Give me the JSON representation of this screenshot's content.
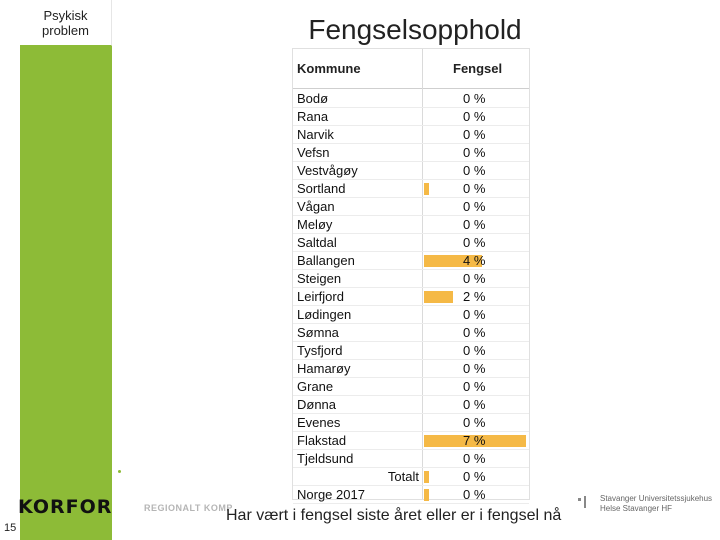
{
  "sidebar": {
    "label": "Psykisk problem"
  },
  "title": "Fengselsopphold",
  "table": {
    "headers": {
      "kommune": "Kommune",
      "fengsel": "Fengsel"
    },
    "bar_color": "#f5b946",
    "rows": [
      {
        "name": "Bodø",
        "pct": "0 %",
        "value": 0
      },
      {
        "name": "Rana",
        "pct": "0 %",
        "value": 0
      },
      {
        "name": "Narvik",
        "pct": "0 %",
        "value": 0
      },
      {
        "name": "Vefsn",
        "pct": "0 %",
        "value": 0
      },
      {
        "name": "Vestvågøy",
        "pct": "0 %",
        "value": 0
      },
      {
        "name": "Sortland",
        "pct": "0 %",
        "value": 0.3
      },
      {
        "name": "Vågan",
        "pct": "0 %",
        "value": 0
      },
      {
        "name": "Meløy",
        "pct": "0 %",
        "value": 0
      },
      {
        "name": "Saltdal",
        "pct": "0 %",
        "value": 0
      },
      {
        "name": "Ballangen",
        "pct": "4 %",
        "value": 4
      },
      {
        "name": "Steigen",
        "pct": "0 %",
        "value": 0
      },
      {
        "name": "Leirfjord",
        "pct": "2 %",
        "value": 2
      },
      {
        "name": "Lødingen",
        "pct": "0 %",
        "value": 0
      },
      {
        "name": "Sømna",
        "pct": "0 %",
        "value": 0
      },
      {
        "name": "Tysfjord",
        "pct": "0 %",
        "value": 0
      },
      {
        "name": "Hamarøy",
        "pct": "0 %",
        "value": 0
      },
      {
        "name": "Grane",
        "pct": "0 %",
        "value": 0
      },
      {
        "name": "Dønna",
        "pct": "0 %",
        "value": 0
      },
      {
        "name": "Evenes",
        "pct": "0 %",
        "value": 0
      },
      {
        "name": "Flakstad",
        "pct": "7 %",
        "value": 7
      },
      {
        "name": "Tjeldsund",
        "pct": "0 %",
        "value": 0
      },
      {
        "name": "Totalt",
        "pct": "0 %",
        "value": 0.3,
        "total": true
      },
      {
        "name": "Norge 2017",
        "pct": "0 %",
        "value": 0.3
      }
    ],
    "max_value": 7
  },
  "footer": {
    "page_number": "15",
    "logo": "KORFOR",
    "regional": "REGIONALT KOMP",
    "caption": "Har vært i fengsel siste året eller er i fengsel nå",
    "sus_line1": "Stavanger Universitetssjukehus",
    "sus_line2": "Helse Stavanger HF"
  }
}
